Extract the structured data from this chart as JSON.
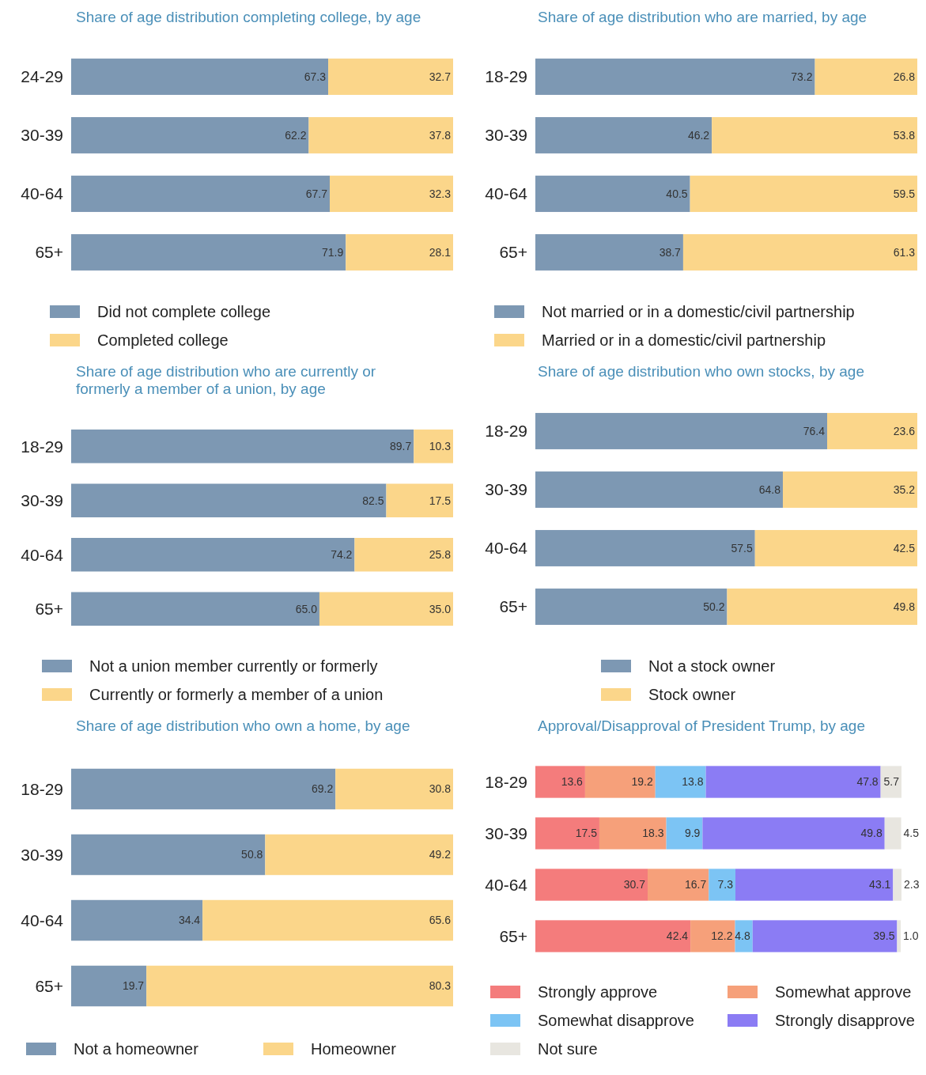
{
  "chart_data": [
    {
      "type": "bar",
      "orientation": "horizontal",
      "stacked": true,
      "data_labels": true,
      "legend": "bottom",
      "title": "Share of age distribution completing college, by age",
      "categories": [
        "24-29",
        "30-39",
        "40-64",
        "65+"
      ],
      "series": [
        {
          "name": "Did not complete college",
          "color": "#7d98b3",
          "values": [
            67.3,
            62.2,
            67.7,
            71.9
          ]
        },
        {
          "name": "Completed college",
          "color": "#fbd68a",
          "values": [
            32.7,
            37.8,
            32.3,
            28.1
          ]
        }
      ]
    },
    {
      "type": "bar",
      "orientation": "horizontal",
      "stacked": true,
      "data_labels": true,
      "legend": "bottom",
      "title": "Share of age distribution who are married, by age",
      "categories": [
        "18-29",
        "30-39",
        "40-64",
        "65+"
      ],
      "series": [
        {
          "name": "Not married or in a domestic/civil partnership",
          "color": "#7d98b3",
          "values": [
            73.2,
            46.2,
            40.5,
            38.7
          ]
        },
        {
          "name": "Married or in a domestic/civil partnership",
          "color": "#fbd68a",
          "values": [
            26.8,
            53.8,
            59.5,
            61.3
          ]
        }
      ]
    },
    {
      "type": "bar",
      "orientation": "horizontal",
      "stacked": true,
      "legend": "bottom",
      "title": "Share of age distribution who are currently or formerly a member of a union, by age",
      "categories": [
        "18-29",
        "30-39",
        "40-64",
        "65+"
      ],
      "series": [
        {
          "name": "Not a union member currently or formerly",
          "color": "#7d98b3",
          "values": [
            89.7,
            82.5,
            74.2,
            65.0
          ],
          "value_labels": [
            "89.7",
            "82.5",
            "74.2",
            "65.0"
          ]
        },
        {
          "name": "Currently or formerly a member of a union",
          "color": "#fbd68a",
          "values": [
            10.3,
            17.5,
            25.8,
            35.0
          ],
          "value_labels": [
            "10.3",
            "17.5",
            "25.8",
            "35.0"
          ]
        }
      ]
    },
    {
      "type": "bar",
      "orientation": "horizontal",
      "stacked": true,
      "data_labels": true,
      "legend": "bottom",
      "title": "Share of age distribution who own stocks, by age",
      "categories": [
        "18-29",
        "30-39",
        "40-64",
        "65+"
      ],
      "series": [
        {
          "name": "Not a stock owner",
          "color": "#7d98b3",
          "values": [
            76.4,
            64.8,
            57.5,
            50.2
          ]
        },
        {
          "name": "Stock owner",
          "color": "#fbd68a",
          "values": [
            23.6,
            35.2,
            42.5,
            49.8
          ]
        }
      ]
    },
    {
      "type": "bar",
      "orientation": "horizontal",
      "stacked": true,
      "data_labels": true,
      "legend": "bottom",
      "title": "Share of age distribution who own a home, by age",
      "categories": [
        "18-29",
        "30-39",
        "40-64",
        "65+"
      ],
      "series": [
        {
          "name": "Not a homeowner",
          "color": "#7d98b3",
          "values": [
            69.2,
            50.8,
            34.4,
            19.7
          ]
        },
        {
          "name": "Homeowner",
          "color": "#fbd68a",
          "values": [
            30.8,
            49.2,
            65.6,
            80.3
          ]
        }
      ]
    },
    {
      "type": "bar",
      "orientation": "horizontal",
      "stacked": true,
      "data_labels": true,
      "legend": "bottom",
      "title": "Approval/Disapproval of President Trump, by age",
      "categories": [
        "18-29",
        "30-39",
        "40-64",
        "65+"
      ],
      "series": [
        {
          "name": "Strongly approve",
          "color": "#f47c7c",
          "values": [
            13.6,
            17.5,
            30.7,
            42.4
          ]
        },
        {
          "name": "Somewhat approve",
          "color": "#f6a07a",
          "values": [
            19.2,
            18.3,
            16.7,
            12.2
          ]
        },
        {
          "name": "Somewhat disapprove",
          "color": "#7cc4f4",
          "values": [
            13.8,
            9.9,
            7.3,
            4.8
          ]
        },
        {
          "name": "Strongly disapprove",
          "color": "#8b7cf4",
          "values": [
            47.8,
            49.8,
            43.1,
            39.5
          ]
        },
        {
          "name": "Not sure",
          "color": "#e8e6e0",
          "values": [
            5.7,
            4.5,
            2.3,
            1.0
          ],
          "value_labels": [
            "5.7",
            "4.5",
            "2.3",
            "1.0"
          ]
        }
      ]
    }
  ]
}
